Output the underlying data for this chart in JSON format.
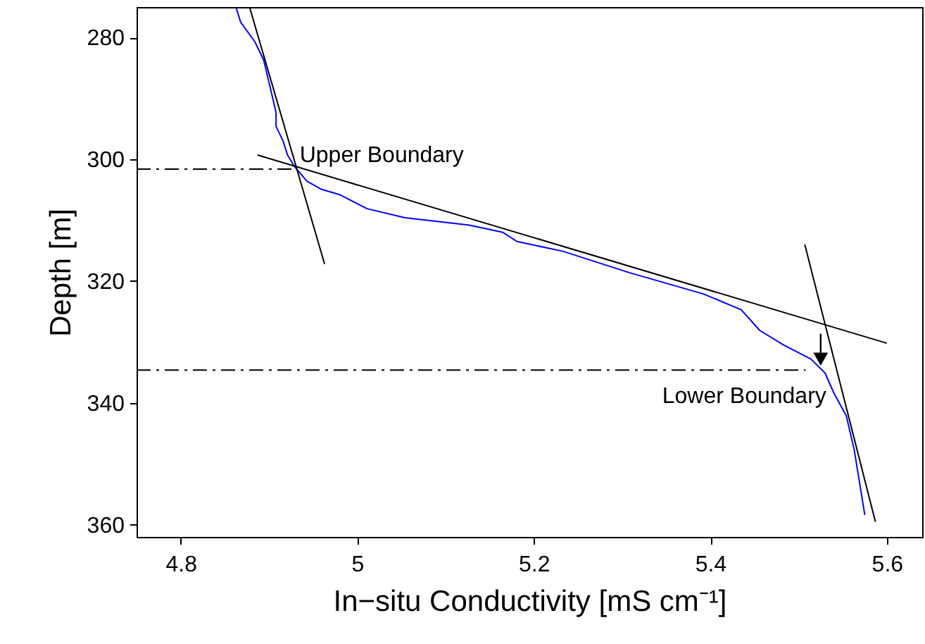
{
  "chart_data": {
    "type": "line",
    "xlabel": "In−situ Conductivity [mS cm⁻¹]",
    "ylabel": "Depth [m]",
    "xlim": [
      4.75,
      5.64
    ],
    "ylim": [
      362,
      275
    ],
    "xticks": [
      4.8,
      5,
      5.2,
      5.4,
      5.6
    ],
    "yticks": [
      280,
      300,
      320,
      340,
      360
    ],
    "grid": false,
    "series": [
      {
        "color": "#0000ff",
        "x": [
          4.863,
          4.868,
          4.884,
          4.894,
          4.903,
          4.908,
          4.908,
          4.916,
          4.921,
          4.929,
          4.943,
          4.959,
          4.98,
          5.011,
          5.054,
          5.127,
          5.165,
          5.181,
          5.233,
          5.308,
          5.392,
          5.435,
          5.456,
          5.483,
          5.514,
          5.53,
          5.54,
          5.554,
          5.563,
          5.575
        ],
        "values": [
          275.2,
          277.5,
          280.7,
          283.7,
          289.2,
          292.3,
          294.6,
          297,
          299.3,
          301.2,
          303.6,
          304.9,
          305.8,
          308.1,
          309.6,
          310.8,
          312,
          313.5,
          315.1,
          318.6,
          322.1,
          324.7,
          328.1,
          330.5,
          332.8,
          335.1,
          338.4,
          342.1,
          347.7,
          358.4
        ]
      },
      {
        "color": "#000000",
        "x": [
          4.878,
          4.963
        ],
        "values": [
          275,
          317.2
        ]
      },
      {
        "color": "#000000",
        "x": [
          4.887,
          5.6
        ],
        "values": [
          299.3,
          330.2
        ]
      },
      {
        "color": "#000000",
        "x": [
          5.507,
          5.587
        ],
        "values": [
          314,
          359.5
        ]
      },
      {
        "color": "#000000",
        "line_style": "dashed",
        "x": [
          4.75,
          4.93
        ],
        "values": [
          301.6,
          301.6
        ]
      },
      {
        "color": "#000000",
        "line_style": "dashed",
        "x": [
          4.75,
          5.508
        ],
        "values": [
          334.6,
          334.6
        ]
      }
    ],
    "annotations": [
      {
        "text": "Upper Boundary",
        "x": 4.93,
        "y": 301.6
      },
      {
        "text": "Lower Boundary",
        "x": 5.525,
        "y": 334.2
      }
    ]
  }
}
